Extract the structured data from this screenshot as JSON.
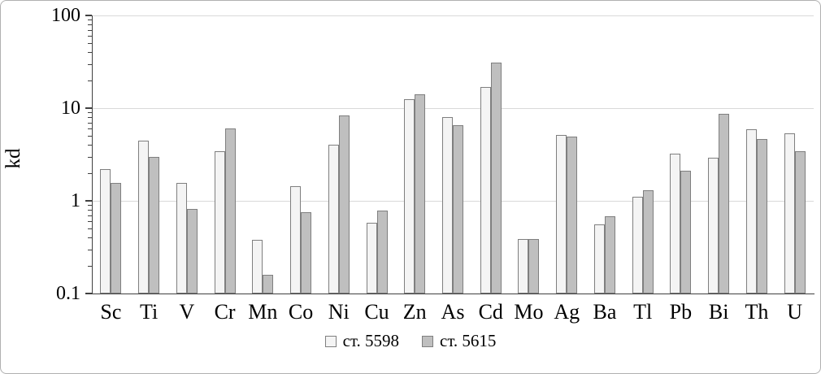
{
  "chart_data": {
    "type": "bar",
    "title": "",
    "ylabel": "kd",
    "xlabel": "",
    "scale": "log",
    "ylim": [
      0.1,
      100
    ],
    "yticks": [
      0.1,
      1,
      10,
      100
    ],
    "grid": true,
    "legend_position": "bottom",
    "categories": [
      "Sc",
      "Ti",
      "V",
      "Cr",
      "Mn",
      "Co",
      "Ni",
      "Cu",
      "Zn",
      "As",
      "Cd",
      "Mo",
      "Ag",
      "Ba",
      "Tl",
      "Pb",
      "Bi",
      "Th",
      "U"
    ],
    "series": [
      {
        "name": "ст. 5598",
        "fill": "#f4f4f4",
        "border": "#7f7f7f",
        "values": [
          2.2,
          4.5,
          1.55,
          3.4,
          0.38,
          1.45,
          4.0,
          0.58,
          12.5,
          8.0,
          17,
          0.39,
          5.1,
          0.56,
          1.1,
          3.2,
          2.9,
          5.9,
          5.3
        ]
      },
      {
        "name": "ст. 5615",
        "fill": "#bfbfbf",
        "border": "#7f7f7f",
        "values": [
          1.55,
          3.0,
          0.82,
          6.0,
          0.16,
          0.75,
          8.3,
          0.78,
          14,
          6.5,
          31,
          0.39,
          4.9,
          0.68,
          1.3,
          2.1,
          8.7,
          4.6,
          3.4
        ]
      }
    ]
  },
  "colors": {
    "gridline": "#d9d9d9",
    "axis": "#404040",
    "text": "#000000",
    "frame": "#b0b0b0"
  }
}
